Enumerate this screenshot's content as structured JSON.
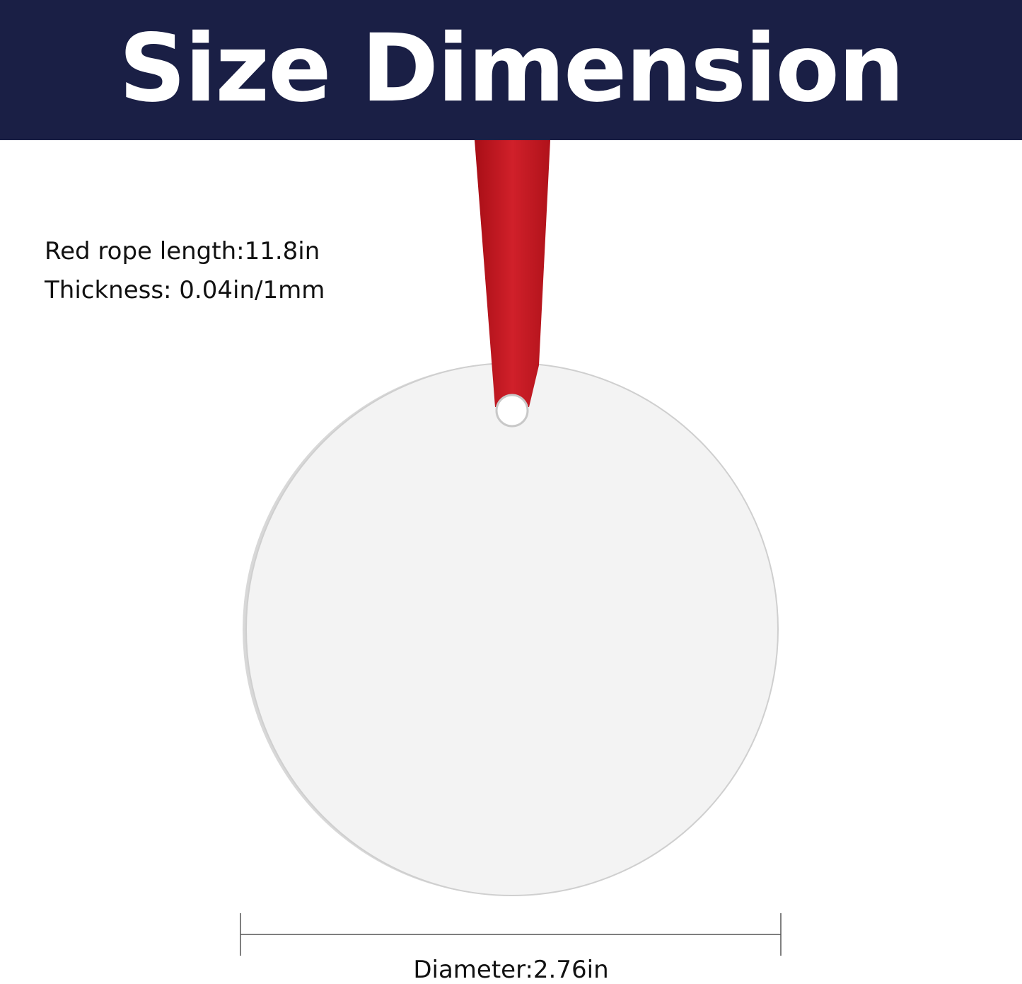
{
  "header": {
    "title": "Size Dimension"
  },
  "specs": {
    "rope_length": "Red rope length:11.8in",
    "thickness": "Thickness: 0.04in/1mm"
  },
  "dimension": {
    "diameter": "Diameter:2.76in"
  },
  "colors": {
    "header_bg": "#1a1f45",
    "ribbon": "#c0141c",
    "ornament": "#f3f3f3"
  }
}
